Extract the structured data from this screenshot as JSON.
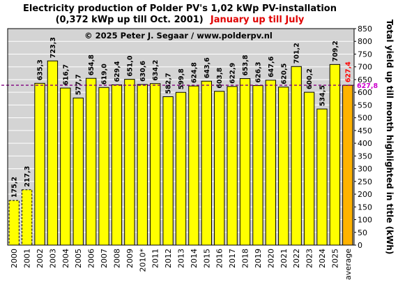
{
  "chart_data": {
    "type": "bar",
    "title_line1": "Electricity production  of Polder  PV's  1,02 kWp PV-installation",
    "title_line2": "(0,372 kWp up till Oct. 2001)",
    "title_highlight": "January up till July",
    "copyright": "© 2025 Peter J. Segaar / www.polderpv.nl",
    "ylabel": "Total yield up till month highlighted in title (kWh)",
    "ylim": [
      0,
      850
    ],
    "ytick_step": 50,
    "grid": true,
    "categories": [
      "2000",
      "2001",
      "2002",
      "2003",
      "2004",
      "2005",
      "2006",
      "2007",
      "2008",
      "2009",
      "2010*",
      "2011",
      "2012",
      "2013",
      "2014",
      "2015",
      "2016",
      "2017",
      "2018",
      "2019",
      "2020",
      "2021",
      "2022",
      "2023",
      "2024",
      "2025",
      "average"
    ],
    "values": [
      175.2,
      217.3,
      635.3,
      723.3,
      616.7,
      577.7,
      654.8,
      619.0,
      629.4,
      651.0,
      630.6,
      634.2,
      582.7,
      599.8,
      624.8,
      643.6,
      603.8,
      622.9,
      653.8,
      626.3,
      647.6,
      620.5,
      701.2,
      600.2,
      534.5,
      709.2,
      627.4
    ],
    "value_labels": [
      "175,2",
      "217,3",
      "635,3",
      "723,3",
      "616,7",
      "577,7",
      "654,8",
      "619,0",
      "629,4",
      "651,0",
      "630,6",
      "634,2",
      "582,7",
      "599,8",
      "624,8",
      "643,6",
      "603,8",
      "622,9",
      "653,8",
      "626,3",
      "647,6",
      "620,5",
      "701,2",
      "600,2",
      "534,5",
      "709,2",
      "627,4"
    ],
    "dashed_bars": [
      0,
      1
    ],
    "highlight_bar": 26,
    "reference_line": {
      "value": 627.8,
      "label": "627,8"
    },
    "colors": {
      "bar": "#ffff00",
      "average_bar": "#ffb300",
      "plot_bg": "#d4d4d4",
      "reference_line": "#800080",
      "reference_label": "#cc00cc",
      "average_label": "#ff0000",
      "title_highlight": "#e00000"
    }
  }
}
